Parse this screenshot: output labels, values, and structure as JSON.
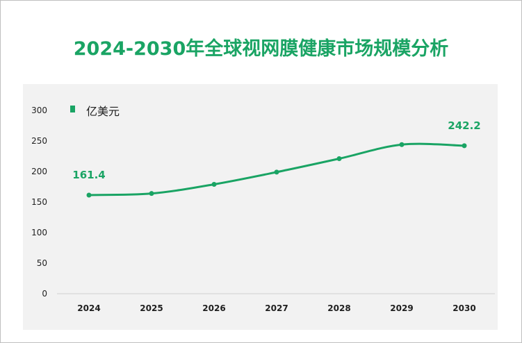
{
  "title": "2024-2030年全球视网膜健康市场规模分析",
  "chart_data": {
    "type": "line",
    "categories": [
      "2024",
      "2025",
      "2026",
      "2027",
      "2028",
      "2029",
      "2030"
    ],
    "series": [
      {
        "name": "亿美元",
        "values": [
          161.4,
          164,
          179,
          199,
          221,
          244,
          242.2
        ]
      }
    ],
    "y_ticks": [
      "0",
      "50",
      "100",
      "150",
      "200",
      "250",
      "300"
    ],
    "ylim": [
      0,
      300
    ],
    "data_labels": [
      {
        "index": 0,
        "text": "161.4"
      },
      {
        "index": 6,
        "text": "242.2"
      }
    ],
    "legend_position": "top-left",
    "grid": false,
    "color": "#1aa464"
  }
}
